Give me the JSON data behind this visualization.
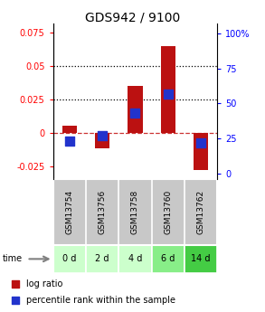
{
  "title": "GDS942 / 9100",
  "samples": [
    "GSM13754",
    "GSM13756",
    "GSM13758",
    "GSM13760",
    "GSM13762"
  ],
  "time_labels": [
    "0 d",
    "2 d",
    "4 d",
    "6 d",
    "14 d"
  ],
  "log_ratios": [
    0.005,
    -0.012,
    0.035,
    0.065,
    -0.028
  ],
  "percentile_ranks": [
    23,
    27,
    43,
    57,
    22
  ],
  "ylim_left": [
    -0.035,
    0.082
  ],
  "ylim_right": [
    -4.0,
    107.0
  ],
  "yticks_left": [
    -0.025,
    0.0,
    0.025,
    0.05,
    0.075
  ],
  "yticks_right": [
    0,
    25,
    50,
    75,
    100
  ],
  "ytick_labels_right": [
    "0",
    "25",
    "50",
    "75",
    "100%"
  ],
  "ytick_labels_left": [
    "-0.025",
    "0",
    "0.025",
    "0.05",
    "0.075"
  ],
  "hlines_dotted": [
    0.025,
    0.05
  ],
  "hline_dashed": 0.0,
  "bar_color": "#bb1111",
  "dot_color": "#2233cc",
  "bar_width": 0.45,
  "dot_size": 45,
  "sample_bg_color": "#c8c8c8",
  "time_row_colors": [
    "#ccffcc",
    "#ccffcc",
    "#ccffcc",
    "#88ee88",
    "#44cc44"
  ],
  "title_fontsize": 10,
  "tick_fontsize": 7,
  "label_fontsize": 7,
  "legend_fontsize": 7
}
